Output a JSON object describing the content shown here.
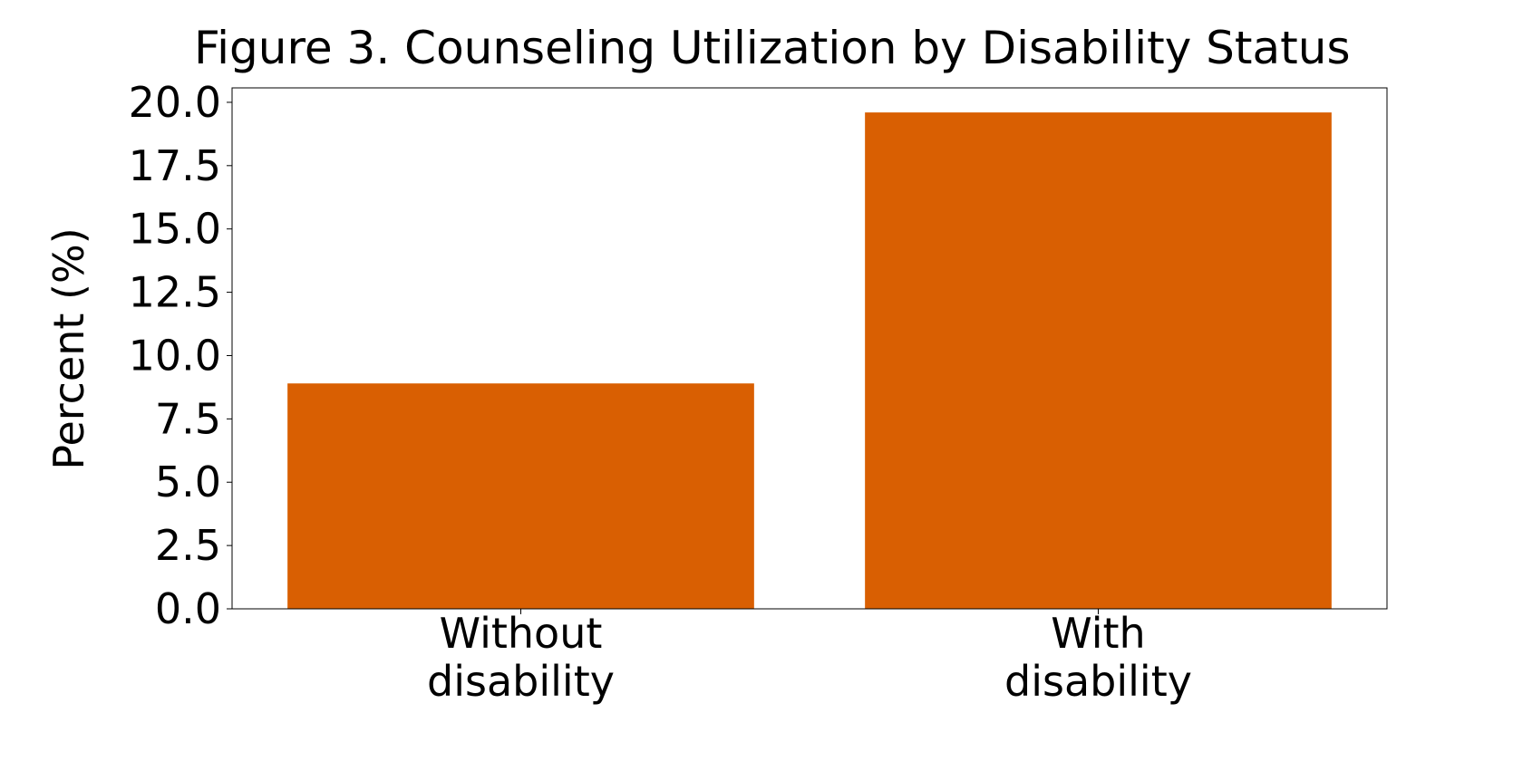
{
  "chart_data": {
    "type": "bar",
    "title": "Figure 3. Counseling Utilization by Disability Status",
    "y_label": "Percent (%)",
    "categories": [
      "Without\ndisability",
      "With\ndisability"
    ],
    "values": [
      8.9,
      19.6
    ],
    "color": "#d95f02",
    "ylim": [
      0,
      20.57
    ],
    "yticks": [
      {
        "value": 0,
        "label": "0.0"
      },
      2.5,
      {
        "value": 5,
        "label": "5.0"
      },
      7.5,
      {
        "value": 10,
        "label": "10.0"
      },
      12.5,
      {
        "value": 15,
        "label": "15.0"
      },
      17.5,
      {
        "value": 20,
        "label": "20.0"
      }
    ],
    "grid": false
  }
}
